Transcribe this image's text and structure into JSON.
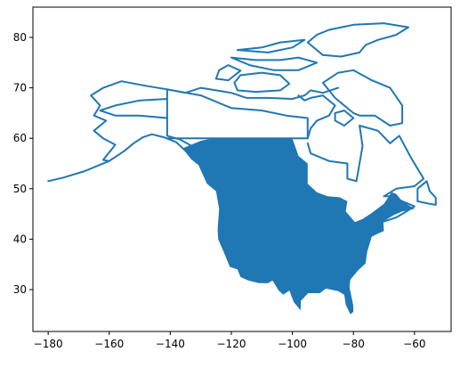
{
  "chart_data": {
    "type": "map",
    "title": "",
    "xlabel": "",
    "ylabel": "",
    "xlim": [
      -185,
      -48
    ],
    "ylim": [
      21.7,
      86
    ],
    "grid": false,
    "legend": "none",
    "series_color": "#1f77b4",
    "x_ticks": [
      {
        "value": -180,
        "label": "−180"
      },
      {
        "value": -160,
        "label": "−160"
      },
      {
        "value": -140,
        "label": "−140"
      },
      {
        "value": -120,
        "label": "−120"
      },
      {
        "value": -100,
        "label": "−100"
      },
      {
        "value": -80,
        "label": "−80"
      },
      {
        "value": -60,
        "label": "−60"
      }
    ],
    "y_ticks": [
      {
        "value": 30,
        "label": "30"
      },
      {
        "value": 40,
        "label": "40"
      },
      {
        "value": 50,
        "label": "50"
      },
      {
        "value": 60,
        "label": "60"
      },
      {
        "value": 70,
        "label": "70"
      },
      {
        "value": 80,
        "label": "80"
      }
    ],
    "regions": [
      {
        "name": "alaska",
        "kind": "outline",
        "lonlat": [
          [
            -180,
            51.5
          ],
          [
            -175,
            52.2
          ],
          [
            -168,
            53.5
          ],
          [
            -164,
            54.5
          ],
          [
            -160,
            55.5
          ],
          [
            -155,
            57.5
          ],
          [
            -152,
            59
          ],
          [
            -149,
            60.2
          ],
          [
            -146,
            60.8
          ],
          [
            -142,
            60.2
          ],
          [
            -138,
            59.2
          ],
          [
            -135,
            57.5
          ],
          [
            -133,
            56
          ],
          [
            -131,
            55
          ],
          [
            -130.5,
            56
          ],
          [
            -133,
            58.5
          ],
          [
            -137,
            59.8
          ],
          [
            -141,
            60.5
          ],
          [
            -141,
            69.7
          ],
          [
            -148,
            70.4
          ],
          [
            -156,
            71.3
          ],
          [
            -162,
            70
          ],
          [
            -166,
            68.5
          ],
          [
            -163,
            66.5
          ],
          [
            -165,
            64.5
          ],
          [
            -161,
            63.5
          ],
          [
            -165,
            61.5
          ],
          [
            -162,
            60
          ],
          [
            -158,
            58.7
          ],
          [
            -162,
            55.7
          ],
          [
            -160,
            55.5
          ]
        ]
      },
      {
        "name": "alaska-interior",
        "kind": "outline",
        "lonlat": [
          [
            -141,
            64
          ],
          [
            -150,
            64.5
          ],
          [
            -158,
            64.5
          ],
          [
            -163,
            65.5
          ],
          [
            -158,
            66.5
          ],
          [
            -150,
            67.5
          ],
          [
            -141,
            67.8
          ]
        ]
      },
      {
        "name": "north-interior",
        "kind": "outline",
        "lonlat": [
          [
            -141,
            60
          ],
          [
            -120,
            60
          ],
          [
            -102,
            60
          ],
          [
            -95,
            60
          ],
          [
            -95,
            64
          ],
          [
            -102,
            64.5
          ],
          [
            -110,
            65.5
          ],
          [
            -120,
            66
          ],
          [
            -130,
            68.5
          ],
          [
            -141,
            69.7
          ]
        ]
      },
      {
        "name": "hudson-shore",
        "kind": "outline",
        "lonlat": [
          [
            -95,
            59
          ],
          [
            -94,
            57
          ],
          [
            -88,
            55.5
          ],
          [
            -82,
            55
          ],
          [
            -82,
            52
          ],
          [
            -79,
            51.5
          ],
          [
            -78,
            55
          ],
          [
            -77,
            58.5
          ],
          [
            -78,
            62.5
          ],
          [
            -72,
            61.5
          ],
          [
            -68,
            59
          ],
          [
            -65,
            60.5
          ],
          [
            -61,
            56
          ],
          [
            -57,
            52
          ],
          [
            -60,
            50.5
          ],
          [
            -66,
            50
          ],
          [
            -70,
            48.5
          ],
          [
            -67,
            48.5
          ],
          [
            -64,
            47.5
          ],
          [
            -60,
            46.5
          ],
          [
            -64,
            45
          ],
          [
            -66,
            44.3
          ],
          [
            -70,
            43.5
          ]
        ]
      },
      {
        "name": "newfoundland",
        "kind": "outline",
        "lonlat": [
          [
            -59,
            47.5
          ],
          [
            -55,
            47
          ],
          [
            -53,
            46.8
          ],
          [
            -53,
            48.2
          ],
          [
            -55,
            49.5
          ],
          [
            -56,
            51.5
          ],
          [
            -59,
            50
          ],
          [
            -59,
            47.5
          ]
        ]
      },
      {
        "name": "baffin",
        "kind": "outline",
        "lonlat": [
          [
            -80,
            65
          ],
          [
            -86,
            68
          ],
          [
            -90,
            71
          ],
          [
            -85,
            73
          ],
          [
            -80,
            73.5
          ],
          [
            -74,
            71.5
          ],
          [
            -68,
            70
          ],
          [
            -64,
            66.5
          ],
          [
            -64,
            63
          ],
          [
            -68,
            62.5
          ],
          [
            -73,
            64.5
          ],
          [
            -78,
            64.5
          ],
          [
            -80,
            65
          ]
        ]
      },
      {
        "name": "victoria",
        "kind": "outline",
        "lonlat": [
          [
            -118,
            69.5
          ],
          [
            -112,
            69.2
          ],
          [
            -104,
            69.5
          ],
          [
            -101,
            70.8
          ],
          [
            -104,
            72.5
          ],
          [
            -110,
            73
          ],
          [
            -117,
            72.5
          ],
          [
            -119,
            71
          ],
          [
            -118,
            69.5
          ]
        ]
      },
      {
        "name": "banks",
        "kind": "outline",
        "lonlat": [
          [
            -125,
            71.8
          ],
          [
            -121,
            71.5
          ],
          [
            -117,
            73.4
          ],
          [
            -121,
            74.5
          ],
          [
            -124,
            73.5
          ],
          [
            -125,
            71.8
          ]
        ]
      },
      {
        "name": "ellesmere",
        "kind": "outline",
        "lonlat": [
          [
            -90,
            76.5
          ],
          [
            -84,
            76.2
          ],
          [
            -78,
            77
          ],
          [
            -76,
            78.5
          ],
          [
            -72,
            79.5
          ],
          [
            -66,
            80.5
          ],
          [
            -62,
            82
          ],
          [
            -70,
            82.8
          ],
          [
            -80,
            82.5
          ],
          [
            -88,
            81.5
          ],
          [
            -92,
            80.5
          ],
          [
            -95,
            79
          ],
          [
            -92,
            77.5
          ],
          [
            -90,
            76.5
          ]
        ]
      },
      {
        "name": "queen-elizabeth-islands",
        "kind": "outline",
        "lonlat": [
          [
            -120,
            76
          ],
          [
            -112,
            75.5
          ],
          [
            -104,
            75.5
          ],
          [
            -98,
            76
          ],
          [
            -92,
            75
          ],
          [
            -98,
            73.5
          ],
          [
            -106,
            73.5
          ],
          [
            -114,
            74.5
          ],
          [
            -120,
            76
          ]
        ]
      },
      {
        "name": "arctic-islands-north",
        "kind": "outline",
        "lonlat": [
          [
            -118,
            77.5
          ],
          [
            -110,
            78
          ],
          [
            -104,
            79
          ],
          [
            -96,
            79.5
          ],
          [
            -100,
            78
          ],
          [
            -108,
            77
          ],
          [
            -118,
            77.5
          ]
        ]
      },
      {
        "name": "southampton",
        "kind": "outline",
        "lonlat": [
          [
            -86,
            63.5
          ],
          [
            -83,
            62.5
          ],
          [
            -80,
            64
          ],
          [
            -83,
            65.5
          ],
          [
            -86,
            65
          ],
          [
            -86,
            63.5
          ]
        ]
      },
      {
        "name": "conus-body",
        "kind": "filled",
        "lonlat": [
          [
            -136,
            58
          ],
          [
            -131,
            55
          ],
          [
            -128,
            51
          ],
          [
            -125,
            49.5
          ],
          [
            -124.7,
            48.4
          ],
          [
            -124,
            46
          ],
          [
            -124.5,
            42
          ],
          [
            -124.3,
            40
          ],
          [
            -122.5,
            37.5
          ],
          [
            -120.5,
            34.5
          ],
          [
            -118,
            34
          ],
          [
            -117,
            32.5
          ],
          [
            -114.5,
            31.8
          ],
          [
            -111,
            31.3
          ],
          [
            -108,
            31.3
          ],
          [
            -106.5,
            31.8
          ],
          [
            -104.5,
            29.8
          ],
          [
            -103,
            29
          ],
          [
            -101,
            29.8
          ],
          [
            -99.5,
            27.5
          ],
          [
            -97.3,
            25.9
          ],
          [
            -97.2,
            27.8
          ],
          [
            -94.8,
            29.3
          ],
          [
            -91,
            29.3
          ],
          [
            -89,
            30.2
          ],
          [
            -85,
            29.7
          ],
          [
            -83,
            29
          ],
          [
            -82.5,
            27
          ],
          [
            -81,
            25.1
          ],
          [
            -80,
            25.6
          ],
          [
            -80.1,
            27
          ],
          [
            -81.3,
            30.5
          ],
          [
            -81,
            32
          ],
          [
            -78.5,
            33.8
          ],
          [
            -76,
            35.2
          ],
          [
            -75.5,
            37.5
          ],
          [
            -74,
            40.5
          ],
          [
            -72,
            41.1
          ],
          [
            -70,
            41.6
          ],
          [
            -70.2,
            43.5
          ],
          [
            -67,
            44.7
          ],
          [
            -64,
            45.5
          ],
          [
            -61.5,
            45.8
          ],
          [
            -60,
            46
          ],
          [
            -64,
            47.5
          ],
          [
            -66,
            49
          ],
          [
            -67.5,
            49.3
          ],
          [
            -70,
            47
          ],
          [
            -74,
            45.2
          ],
          [
            -77,
            44
          ],
          [
            -79.5,
            43.4
          ],
          [
            -82.5,
            45.5
          ],
          [
            -82,
            47.5
          ],
          [
            -84.5,
            48.3
          ],
          [
            -88.5,
            48.5
          ],
          [
            -92,
            49.3
          ],
          [
            -95,
            51
          ],
          [
            -95,
            55
          ],
          [
            -98,
            56.5
          ],
          [
            -100,
            60
          ],
          [
            -106,
            60
          ],
          [
            -114,
            60
          ],
          [
            -120,
            60
          ],
          [
            -126,
            60
          ],
          [
            -130,
            59.5
          ],
          [
            -136,
            58
          ]
        ]
      },
      {
        "name": "hudson-west-coast",
        "kind": "outline",
        "lonlat": [
          [
            -95,
            60
          ],
          [
            -94,
            62
          ],
          [
            -92,
            63.5
          ],
          [
            -88,
            64.5
          ],
          [
            -86,
            66.5
          ],
          [
            -90,
            68.5
          ],
          [
            -94,
            68
          ],
          [
            -96,
            67.5
          ],
          [
            -98,
            68.5
          ]
        ]
      },
      {
        "name": "mainland-arctic-coast",
        "kind": "outline",
        "lonlat": [
          [
            -141,
            69.7
          ],
          [
            -135,
            69
          ],
          [
            -130,
            70
          ],
          [
            -125,
            69.5
          ],
          [
            -120,
            69
          ],
          [
            -115,
            68
          ],
          [
            -108,
            68
          ],
          [
            -100,
            67.8
          ],
          [
            -96,
            68.5
          ],
          [
            -94,
            69.5
          ],
          [
            -90,
            69
          ],
          [
            -85,
            70
          ]
        ]
      }
    ]
  }
}
